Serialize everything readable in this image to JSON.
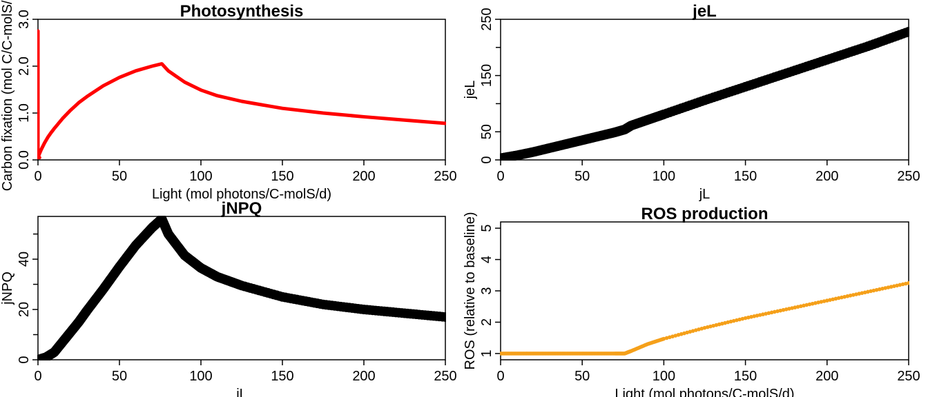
{
  "chart_data": [
    {
      "type": "line",
      "title": "Photosynthesis",
      "xlabel": "Light (mol photons/C-molS/d)",
      "ylabel": "Carbon fixation (mol C/C-molS/d)",
      "xlim": [
        0,
        250
      ],
      "ylim": [
        0,
        3.0
      ],
      "xticks": [
        0,
        50,
        100,
        150,
        200,
        250
      ],
      "yticks": [
        0.0,
        1.0,
        2.0,
        3.0
      ],
      "ytick_labels": [
        "0.0",
        "1.0",
        "2.0",
        "3.0"
      ],
      "color": "#ff0000",
      "series": [
        {
          "x": [
            0,
            0.5,
            1,
            2,
            4,
            6,
            8,
            10,
            15,
            20,
            25,
            30,
            40,
            50,
            60,
            70,
            76,
            80,
            90,
            100,
            110,
            125,
            150,
            175,
            200,
            225,
            250
          ],
          "y": [
            0.05,
            0.1,
            0.14,
            0.22,
            0.36,
            0.48,
            0.58,
            0.67,
            0.88,
            1.06,
            1.22,
            1.35,
            1.58,
            1.76,
            1.9,
            2.0,
            2.05,
            1.9,
            1.66,
            1.49,
            1.37,
            1.25,
            1.1,
            1.0,
            0.92,
            0.85,
            0.78
          ]
        },
        {
          "x": [
            0,
            0,
            1
          ],
          "y": [
            2.75,
            0.05,
            0.05
          ]
        }
      ]
    },
    {
      "type": "scatter",
      "title": "jeL",
      "xlabel": "jL",
      "ylabel": "jeL",
      "xlim": [
        0,
        250
      ],
      "ylim": [
        0,
        250
      ],
      "xticks": [
        0,
        50,
        100,
        150,
        200,
        250
      ],
      "yticks": [
        0,
        50,
        150,
        250
      ],
      "minor_yticks": [
        100,
        200
      ],
      "color": "#000000",
      "series": [
        {
          "x": [
            0,
            10,
            20,
            30,
            40,
            50,
            60,
            70,
            76,
            80,
            90,
            100,
            125,
            150,
            175,
            200,
            225,
            250
          ],
          "y": [
            3,
            8,
            14,
            21,
            28,
            35,
            42,
            49,
            54,
            61,
            71,
            81,
            106,
            130,
            154,
            178,
            202,
            228
          ]
        }
      ]
    },
    {
      "type": "scatter",
      "title": "jNPQ",
      "xlabel": "jL",
      "ylabel": "jNPQ",
      "xlim": [
        0,
        250
      ],
      "ylim": [
        0,
        57
      ],
      "xticks": [
        0,
        50,
        100,
        150,
        200,
        250
      ],
      "yticks": [
        0,
        20,
        40
      ],
      "minor_yticks": [
        10,
        30,
        50
      ],
      "color": "#000000",
      "series": [
        {
          "x": [
            0,
            5,
            10,
            15,
            20,
            25,
            30,
            40,
            50,
            60,
            70,
            76,
            80,
            90,
            100,
            110,
            125,
            150,
            175,
            200,
            225,
            250
          ],
          "y": [
            0,
            1,
            3,
            7,
            11,
            15,
            19.5,
            28,
            37,
            45.5,
            52.5,
            56,
            50,
            41.5,
            36.5,
            33,
            29.5,
            25,
            22,
            20,
            18.5,
            17
          ]
        }
      ]
    },
    {
      "type": "scatter",
      "title": "ROS production",
      "xlabel": "Light (mol photons/C-molS/d)",
      "ylabel": "ROS (relative to baseline)",
      "xlim": [
        0,
        250
      ],
      "ylim": [
        0.8,
        5.2
      ],
      "xticks": [
        0,
        50,
        100,
        150,
        200,
        250
      ],
      "yticks": [
        1,
        2,
        3,
        4,
        5
      ],
      "color": "#f5a01a",
      "series": [
        {
          "x": [
            0,
            10,
            20,
            30,
            40,
            50,
            60,
            70,
            76,
            80,
            90,
            100,
            125,
            150,
            175,
            200,
            225,
            250
          ],
          "y": [
            1,
            1,
            1,
            1,
            1,
            1,
            1,
            1,
            1,
            1.08,
            1.3,
            1.47,
            1.82,
            2.13,
            2.41,
            2.69,
            2.97,
            3.25
          ]
        }
      ]
    }
  ]
}
